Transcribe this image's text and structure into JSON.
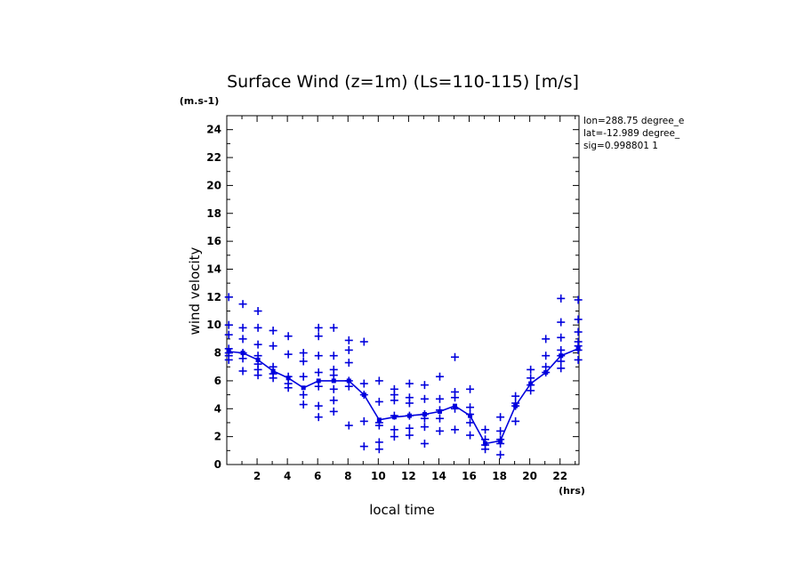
{
  "chart_data": {
    "type": "scatter",
    "title": "Surface Wind (z=1m) (Ls=110-115) [m/s]",
    "y_unit": "(m.s-1)",
    "x_unit": "(hrs)",
    "xlabel": "local time",
    "ylabel": "wind velocity",
    "xlim": [
      0,
      23.25
    ],
    "ylim": [
      0,
      25
    ],
    "x_ticks": [
      2,
      4,
      6,
      8,
      10,
      12,
      14,
      16,
      18,
      20,
      22
    ],
    "y_ticks": [
      0,
      2,
      4,
      6,
      8,
      10,
      12,
      14,
      16,
      18,
      20,
      22,
      24
    ],
    "info_lines": [
      "lon=288.75 degree_e",
      "lat=-12.989 degree_",
      "sig=0.998801 1"
    ],
    "color": "#0000dd",
    "grid": false,
    "series": [
      {
        "style": "line",
        "x": [
          0.13,
          1.06,
          2.06,
          3.06,
          4.06,
          5.06,
          6.06,
          7.06,
          8.06,
          9.06,
          10.06,
          11.06,
          12.06,
          13.06,
          14.06,
          15.06,
          16.06,
          17.06,
          18.06,
          19.06,
          20.06,
          21.06,
          22.06,
          23.2
        ],
        "y": [
          8.1,
          8.0,
          7.5,
          6.7,
          6.2,
          5.5,
          6.0,
          6.0,
          6.0,
          5.0,
          3.2,
          3.4,
          3.5,
          3.6,
          3.8,
          4.2,
          3.5,
          1.5,
          1.7,
          4.2,
          5.8,
          6.6,
          7.8,
          8.3
        ]
      },
      {
        "style": "markers",
        "x": [
          0.13,
          0.13,
          0.13,
          0.13,
          0.13,
          0.13,
          0.13,
          1.06,
          1.06,
          1.06,
          1.06,
          1.06,
          1.06,
          2.06,
          2.06,
          2.06,
          2.06,
          2.06,
          2.06,
          2.06,
          3.06,
          3.06,
          3.06,
          3.06,
          3.06,
          4.06,
          4.06,
          4.06,
          4.06,
          4.06,
          5.06,
          5.06,
          5.06,
          5.06,
          5.06,
          6.06,
          6.06,
          6.06,
          6.06,
          6.06,
          6.06,
          6.06,
          7.06,
          7.06,
          7.06,
          7.06,
          7.06,
          7.06,
          7.06,
          8.06,
          8.06,
          8.06,
          8.06,
          8.06,
          8.06,
          9.06,
          9.06,
          9.06,
          9.06,
          9.06,
          10.06,
          10.06,
          10.06,
          10.06,
          10.06,
          10.06,
          11.06,
          11.06,
          11.06,
          11.06,
          11.06,
          11.06,
          12.06,
          12.06,
          12.06,
          12.06,
          12.06,
          12.06,
          13.06,
          13.06,
          13.06,
          13.06,
          13.06,
          13.06,
          14.06,
          14.06,
          14.06,
          14.06,
          14.06,
          15.06,
          15.06,
          15.06,
          15.06,
          15.06,
          16.06,
          16.06,
          16.06,
          16.06,
          16.06,
          17.06,
          17.06,
          17.06,
          17.06,
          18.06,
          18.06,
          18.06,
          18.06,
          18.06,
          19.06,
          19.06,
          19.06,
          19.06,
          20.06,
          20.06,
          20.06,
          20.06,
          21.06,
          21.06,
          21.06,
          21.06,
          22.06,
          22.06,
          22.06,
          22.06,
          22.06,
          22.06,
          22.06,
          23.2,
          23.2,
          23.2,
          23.2,
          23.2,
          23.2,
          23.2
        ],
        "y": [
          12.0,
          10.0,
          9.3,
          8.3,
          8.0,
          7.8,
          7.5,
          11.5,
          9.8,
          9.0,
          8.0,
          7.6,
          6.7,
          11.0,
          9.8,
          8.6,
          7.8,
          7.2,
          6.8,
          6.4,
          9.6,
          8.5,
          7.0,
          6.5,
          6.2,
          9.2,
          7.9,
          6.3,
          5.8,
          5.5,
          8.0,
          7.4,
          6.3,
          5.0,
          4.3,
          9.8,
          9.2,
          7.8,
          6.6,
          5.6,
          4.2,
          3.4,
          9.8,
          7.8,
          6.4,
          5.4,
          4.6,
          3.8,
          6.8,
          8.9,
          8.2,
          7.3,
          6.0,
          5.6,
          2.8,
          8.8,
          5.8,
          5.0,
          3.1,
          1.3,
          6.0,
          4.5,
          3.0,
          2.8,
          1.6,
          1.1,
          5.4,
          4.6,
          3.5,
          2.5,
          2.0,
          5.0,
          5.8,
          4.8,
          4.4,
          3.5,
          2.6,
          2.1,
          5.7,
          4.7,
          3.6,
          3.3,
          2.7,
          1.5,
          6.3,
          4.7,
          3.9,
          3.3,
          2.4,
          7.7,
          5.2,
          4.8,
          4.0,
          2.5,
          5.4,
          4.1,
          3.6,
          3.0,
          2.1,
          2.5,
          1.8,
          1.4,
          1.1,
          3.4,
          2.4,
          1.8,
          1.5,
          0.7,
          4.9,
          4.4,
          4.2,
          3.1,
          6.8,
          6.2,
          5.7,
          5.3,
          9.0,
          7.8,
          7.0,
          6.6,
          11.9,
          10.2,
          9.1,
          8.2,
          7.8,
          7.4,
          6.9,
          11.8,
          10.4,
          9.5,
          8.8,
          8.5,
          8.2,
          7.5
        ]
      }
    ]
  }
}
